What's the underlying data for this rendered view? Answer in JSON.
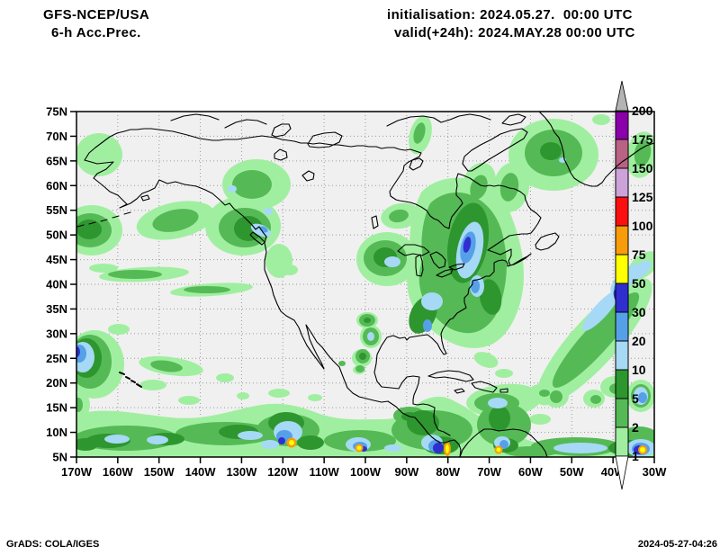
{
  "header": {
    "model": "GFS-NCEP/USA",
    "product": "6-h Acc.Prec.",
    "init": "initialisation: 2024.05.27.  00:00 UTC",
    "valid": "valid(+24h): 2024.MAY.28 00:00 UTC"
  },
  "footer": {
    "left": "GrADS: COLA/IGES",
    "right": "2024-05-27-04:26"
  },
  "axes": {
    "lat_labels": [
      "75N",
      "70N",
      "65N",
      "60N",
      "55N",
      "50N",
      "45N",
      "40N",
      "35N",
      "30N",
      "25N",
      "20N",
      "15N",
      "10N",
      "5N"
    ],
    "lon_labels": [
      "170W",
      "160W",
      "150W",
      "140W",
      "130W",
      "120W",
      "110W",
      "100W",
      "90W",
      "80W",
      "70W",
      "60W",
      "50W",
      "40W",
      "30W"
    ]
  },
  "colorbar": {
    "levels": [
      "1",
      "2",
      "5",
      "10",
      "20",
      "30",
      "50",
      "75",
      "100",
      "125",
      "150",
      "175",
      "200"
    ],
    "colors": [
      "#a0efa0",
      "#55ba55",
      "#2e962e",
      "#a6d9f5",
      "#56a0e8",
      "#2f2fd0",
      "#ffff00",
      "#f89c0a",
      "#fb1010",
      "#cda2da",
      "#ba6284",
      "#8a00aa"
    ],
    "over_arrow_color": "#b4b4b4",
    "under_arrow_color": "#ffffff"
  },
  "map_style": {
    "background": "#f0f0f0",
    "grid_color": "#999999",
    "coast_color": "#000000"
  },
  "chart_data": {
    "type": "map",
    "title": "GFS-NCEP/USA 6-h Acc.Prec.",
    "init_time": "2024.05.27 00:00 UTC",
    "valid_time": "2024.MAY.28 00:00 UTC (+24h)",
    "lat_range": [
      "5N",
      "75N"
    ],
    "lon_range": [
      "170W",
      "30W"
    ],
    "grid": true,
    "legend_position": "right",
    "scale_levels": [
      1,
      2,
      5,
      10,
      20,
      30,
      50,
      75,
      100,
      125,
      150,
      175,
      200
    ],
    "scale_colors": [
      "#a0efa0",
      "#55ba55",
      "#2e962e",
      "#a6d9f5",
      "#56a0e8",
      "#2f2fd0",
      "#ffff00",
      "#f89c0a",
      "#fb1010",
      "#cda2da",
      "#ba6284",
      "#8a00aa"
    ]
  }
}
